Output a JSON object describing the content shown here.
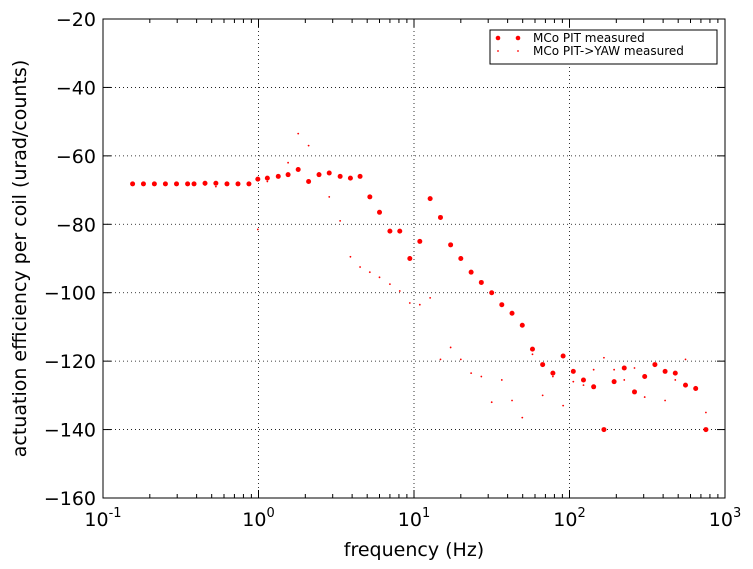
{
  "chart_data": {
    "type": "scatter",
    "xscale": "log",
    "xlim": [
      0.1,
      1000
    ],
    "ylim": [
      -160,
      -20
    ],
    "xlabel": "frequency (Hz)",
    "ylabel": "actuation efficiency per coil (urad/counts)",
    "grid": true,
    "legend_position": "top-right",
    "x_tick_labels": [
      {
        "base": "10",
        "exp": "-1"
      },
      {
        "base": "10",
        "exp": "0"
      },
      {
        "base": "10",
        "exp": "1"
      },
      {
        "base": "10",
        "exp": "2"
      },
      {
        "base": "10",
        "exp": "3"
      }
    ],
    "y_tick_labels": [
      "−20",
      "−40",
      "−60",
      "−80",
      "−100",
      "−120",
      "−140",
      "−160"
    ],
    "series": [
      {
        "name": "MCo PIT measured",
        "color": "#ff0000",
        "marker": "large-dot",
        "points": [
          [
            0.155,
            -68.2
          ],
          [
            0.182,
            -68.2
          ],
          [
            0.214,
            -68.2
          ],
          [
            0.252,
            -68.2
          ],
          [
            0.297,
            -68.2
          ],
          [
            0.35,
            -68.2
          ],
          [
            0.385,
            -68.2
          ],
          [
            0.453,
            -68.0
          ],
          [
            0.532,
            -68.0
          ],
          [
            0.627,
            -68.2
          ],
          [
            0.738,
            -68.2
          ],
          [
            0.868,
            -68.2
          ],
          [
            0.99,
            -66.8
          ],
          [
            1.14,
            -66.5
          ],
          [
            1.34,
            -66.0
          ],
          [
            1.55,
            -65.5
          ],
          [
            1.8,
            -64.0
          ],
          [
            2.1,
            -67.5
          ],
          [
            2.45,
            -65.5
          ],
          [
            2.85,
            -65.0
          ],
          [
            3.35,
            -66.0
          ],
          [
            3.9,
            -66.5
          ],
          [
            4.5,
            -66.0
          ],
          [
            5.2,
            -72.0
          ],
          [
            6.0,
            -76.5
          ],
          [
            7.0,
            -82.0
          ],
          [
            8.1,
            -82.0
          ],
          [
            9.4,
            -90.0
          ],
          [
            10.9,
            -85.0
          ],
          [
            12.7,
            -72.5
          ],
          [
            14.8,
            -78.0
          ],
          [
            17.2,
            -86.0
          ],
          [
            20.0,
            -90.0
          ],
          [
            23.3,
            -94.0
          ],
          [
            27.1,
            -97.0
          ],
          [
            31.6,
            -100.0
          ],
          [
            36.7,
            -103.5
          ],
          [
            42.7,
            -106.0
          ],
          [
            49.7,
            -109.5
          ],
          [
            57.8,
            -116.5
          ],
          [
            67.2,
            -121.0
          ],
          [
            78.2,
            -123.5
          ],
          [
            91.0,
            -118.5
          ],
          [
            105.8,
            -123.0
          ],
          [
            123.0,
            -125.5
          ],
          [
            143.0,
            -127.5
          ],
          [
            166.5,
            -140.0
          ],
          [
            193.6,
            -126.0
          ],
          [
            225.0,
            -122.0
          ],
          [
            261.8,
            -129.0
          ],
          [
            304.5,
            -124.5
          ],
          [
            354.2,
            -121.0
          ],
          [
            411.9,
            -123.0
          ],
          [
            479.0,
            -123.5
          ],
          [
            557.2,
            -127.0
          ],
          [
            648.0,
            -128.0
          ],
          [
            753.8,
            -140.0
          ]
        ]
      },
      {
        "name": "MCo PIT->YAW measured",
        "color": "#ff0000",
        "marker": "small-dot",
        "points": [
          [
            0.155,
            -68.2
          ],
          [
            0.182,
            -68.2
          ],
          [
            0.214,
            -68.2
          ],
          [
            0.252,
            -68.2
          ],
          [
            0.297,
            -68.2
          ],
          [
            0.35,
            -68.2
          ],
          [
            0.453,
            -68.5
          ],
          [
            0.532,
            -69.0
          ],
          [
            0.627,
            -68.5
          ],
          [
            0.738,
            -68.5
          ],
          [
            0.99,
            -81.5
          ],
          [
            1.14,
            -67.5
          ],
          [
            1.55,
            -62.0
          ],
          [
            1.8,
            -53.5
          ],
          [
            2.1,
            -57.0
          ],
          [
            2.45,
            -65.0
          ],
          [
            2.85,
            -72.0
          ],
          [
            3.35,
            -79.0
          ],
          [
            3.9,
            -89.5
          ],
          [
            4.5,
            -92.5
          ],
          [
            5.2,
            -94.0
          ],
          [
            6.0,
            -95.5
          ],
          [
            7.0,
            -97.5
          ],
          [
            8.1,
            -99.5
          ],
          [
            9.4,
            -103.0
          ],
          [
            10.9,
            -103.5
          ],
          [
            12.7,
            -101.5
          ],
          [
            14.8,
            -119.5
          ],
          [
            17.2,
            -116.0
          ],
          [
            20.0,
            -119.5
          ],
          [
            23.3,
            -123.5
          ],
          [
            27.1,
            -124.5
          ],
          [
            31.6,
            -132.0
          ],
          [
            36.7,
            -125.5
          ],
          [
            42.7,
            -131.5
          ],
          [
            49.7,
            -136.5
          ],
          [
            57.8,
            -118.0
          ],
          [
            67.2,
            -130.0
          ],
          [
            78.2,
            -124.5
          ],
          [
            91.0,
            -133.0
          ],
          [
            105.8,
            -126.0
          ],
          [
            123.0,
            -127.0
          ],
          [
            143.0,
            -122.5
          ],
          [
            166.5,
            -119.0
          ],
          [
            193.6,
            -122.5
          ],
          [
            225.0,
            -125.5
          ],
          [
            261.8,
            -122.0
          ],
          [
            304.5,
            -130.5
          ],
          [
            354.2,
            -121.5
          ],
          [
            411.9,
            -131.5
          ],
          [
            479.0,
            -125.5
          ],
          [
            557.2,
            -119.5
          ],
          [
            648.0,
            -127.5
          ],
          [
            753.8,
            -135.0
          ]
        ]
      }
    ]
  }
}
